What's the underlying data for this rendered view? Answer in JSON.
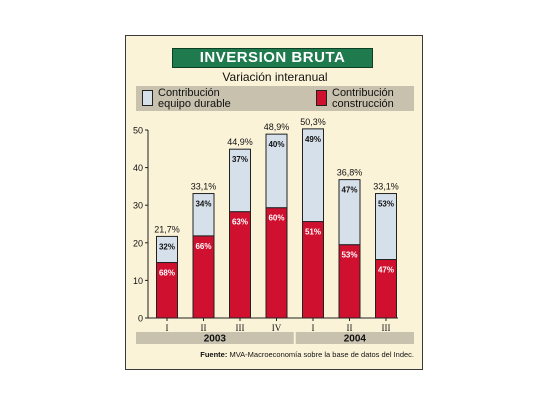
{
  "title": "INVERSION BRUTA",
  "subtitle": "Variación interanual",
  "legend": [
    {
      "label": "Contribución\nequipo durable",
      "color": "#d6e0ea"
    },
    {
      "label": "Contribución\nconstrucción",
      "color": "#d0102f"
    }
  ],
  "source": {
    "label": "Fuente:",
    "text": "MVA-Macroeconomía sobre la base de datos del Indec."
  },
  "chart_data": {
    "type": "bar",
    "stacked": true,
    "categories": [
      "I",
      "II",
      "III",
      "IV",
      "I",
      "II",
      "III"
    ],
    "groups": [
      {
        "label": "2003",
        "count": 4
      },
      {
        "label": "2004",
        "count": 3
      }
    ],
    "totals": [
      21.7,
      33.1,
      44.9,
      48.9,
      50.3,
      36.8,
      33.1
    ],
    "total_labels": [
      "21,7%",
      "33,1%",
      "44,9%",
      "48,9%",
      "50,3%",
      "36,8%",
      "33,1%"
    ],
    "series": [
      {
        "name": "Contribución construcción",
        "color": "#d0102f",
        "share_labels": [
          "68%",
          "66%",
          "63%",
          "60%",
          "51%",
          "53%",
          "47%"
        ],
        "share": [
          68,
          66,
          63,
          60,
          51,
          53,
          47
        ]
      },
      {
        "name": "Contribución equipo durable",
        "color": "#d6e0ea",
        "share_labels": [
          "32%",
          "34%",
          "37%",
          "40%",
          "49%",
          "47%",
          "53%"
        ],
        "share": [
          32,
          34,
          37,
          40,
          49,
          47,
          53
        ]
      }
    ],
    "yticks": [
      "0",
      "10",
      "20",
      "30",
      "40",
      "50"
    ],
    "ylim": [
      0,
      50
    ],
    "grid": false
  }
}
